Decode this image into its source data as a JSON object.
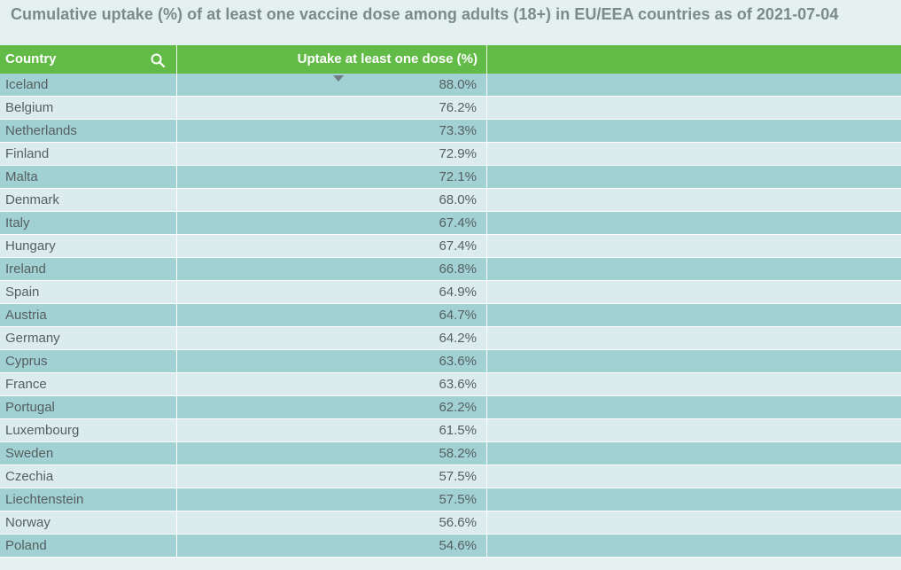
{
  "title": "Cumulative uptake (%) of at least one vaccine dose among adults (18+) in EU/EEA countries as of 2021-07-04",
  "colors": {
    "header": "#63bb47",
    "row_odd": "#a2d1d4",
    "row_even": "#dcebed",
    "title_text": "#7d8a8c",
    "cell_text": "#555f61"
  },
  "icons": {
    "search": "search-icon",
    "sort": "sort-descending-icon"
  },
  "chart_data": {
    "type": "table",
    "title": "Cumulative uptake (%) of at least one vaccine dose among adults (18+) in EU/EEA countries as of 2021-07-04",
    "columns": [
      "Country",
      "Uptake at least one dose (%)"
    ],
    "sort": {
      "column": "Uptake at least one dose (%)",
      "order": "descending"
    },
    "rows": [
      {
        "country": "Iceland",
        "value": "88.0%"
      },
      {
        "country": "Belgium",
        "value": "76.2%"
      },
      {
        "country": "Netherlands",
        "value": "73.3%"
      },
      {
        "country": "Finland",
        "value": "72.9%"
      },
      {
        "country": "Malta",
        "value": "72.1%"
      },
      {
        "country": "Denmark",
        "value": "68.0%"
      },
      {
        "country": "Italy",
        "value": "67.4%"
      },
      {
        "country": "Hungary",
        "value": "67.4%"
      },
      {
        "country": "Ireland",
        "value": "66.8%"
      },
      {
        "country": "Spain",
        "value": "64.9%"
      },
      {
        "country": "Austria",
        "value": "64.7%"
      },
      {
        "country": "Germany",
        "value": "64.2%"
      },
      {
        "country": "Cyprus",
        "value": "63.6%"
      },
      {
        "country": "France",
        "value": "63.6%"
      },
      {
        "country": "Portugal",
        "value": "62.2%"
      },
      {
        "country": "Luxembourg",
        "value": "61.5%"
      },
      {
        "country": "Sweden",
        "value": "58.2%"
      },
      {
        "country": "Czechia",
        "value": "57.5%"
      },
      {
        "country": "Liechtenstein",
        "value": "57.5%"
      },
      {
        "country": "Norway",
        "value": "56.6%"
      },
      {
        "country": "Poland",
        "value": "54.6%"
      }
    ]
  }
}
